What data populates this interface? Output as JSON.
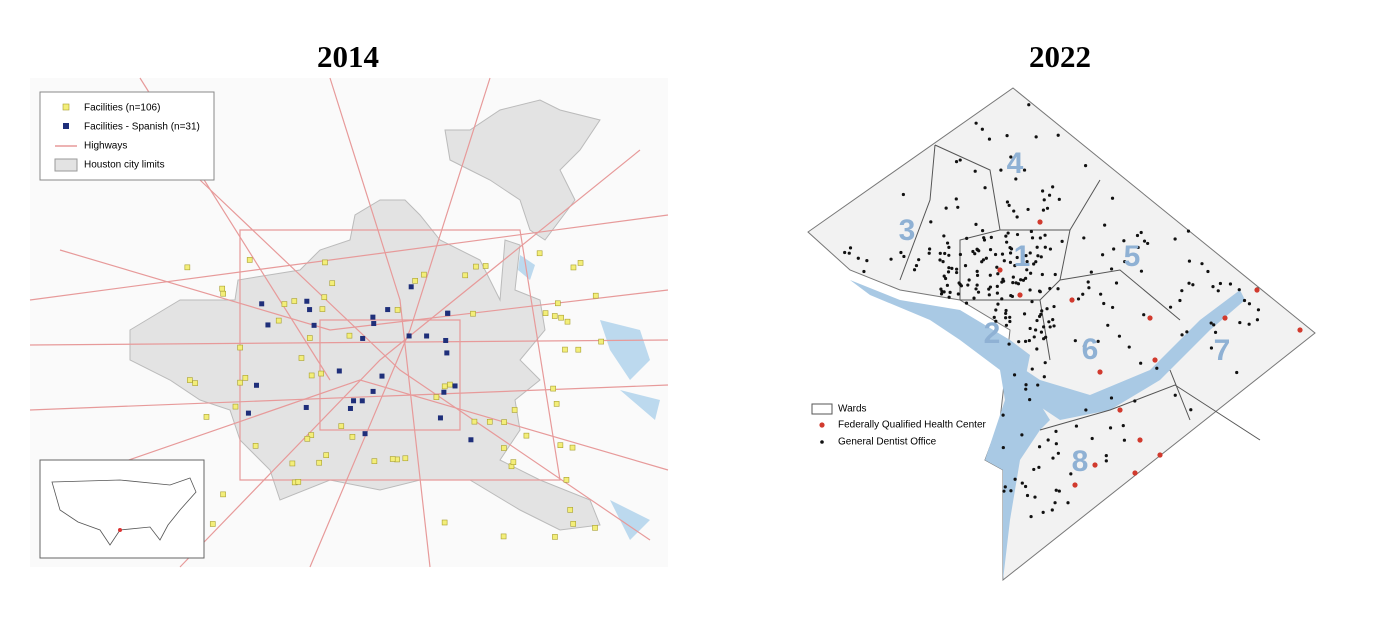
{
  "panels": [
    {
      "title": "2014",
      "legend": [
        "Facilities (n=106)",
        "Facilities - Spanish (n=31)",
        "Highways",
        "Houston city limits"
      ]
    },
    {
      "title": "2022",
      "legend": [
        "Wards",
        "Federally Qualified Health Center",
        "General Dentist Office"
      ],
      "wards": [
        "4",
        "3",
        "1",
        "5",
        "2",
        "6",
        "7",
        "8"
      ]
    }
  ]
}
